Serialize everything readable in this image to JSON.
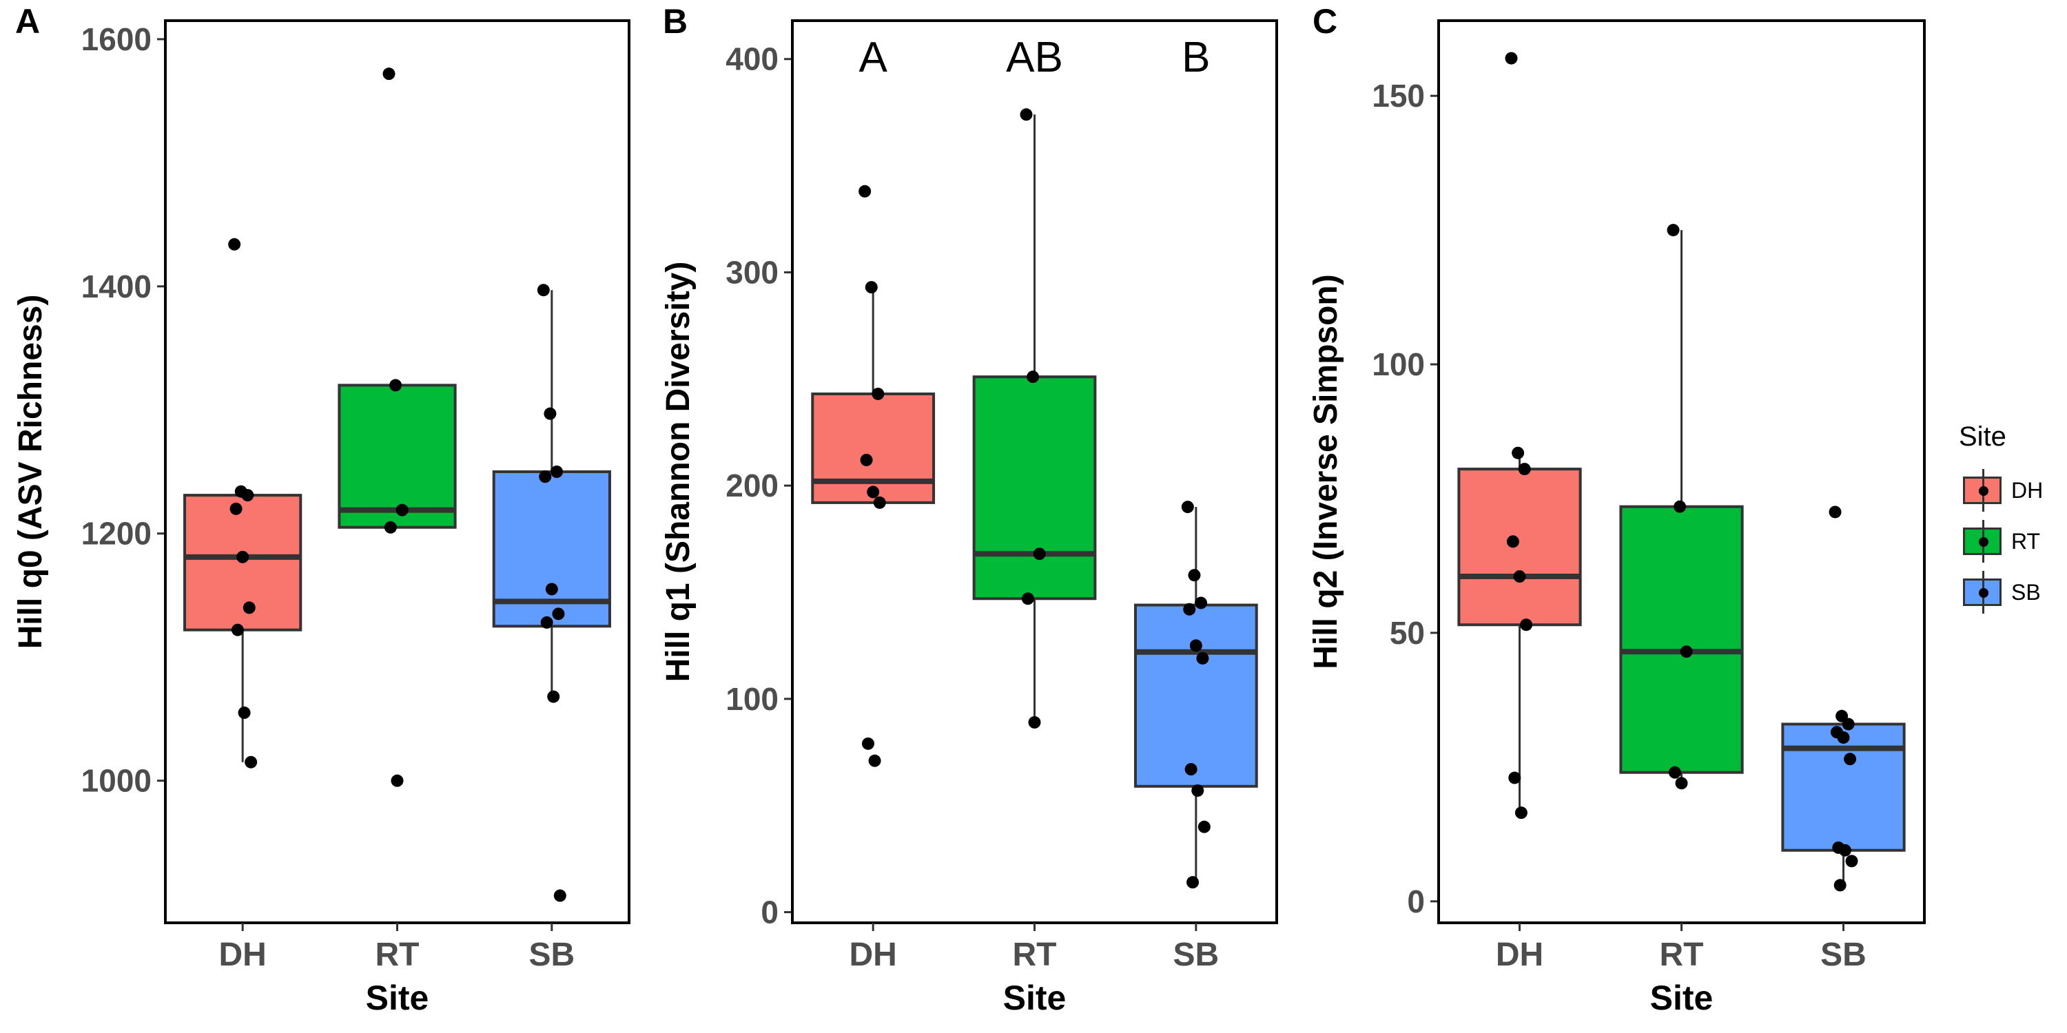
{
  "colors": {
    "DH": "#F8766D",
    "RT": "#00BA38",
    "SB": "#619CFF",
    "box_line": "#333333",
    "point": "#000000",
    "frame": "#000000",
    "tick_text": "#4D4D4D"
  },
  "legend": {
    "title": "Site",
    "placement": "right",
    "items": [
      {
        "label": "DH",
        "color": "#F8766D"
      },
      {
        "label": "RT",
        "color": "#00BA38"
      },
      {
        "label": "SB",
        "color": "#619CFF"
      }
    ]
  },
  "chart_data": [
    {
      "panel": "A",
      "type": "box",
      "xlabel": "Site",
      "ylabel": "Hill q0 (ASV Richness)",
      "categories": [
        "DH",
        "RT",
        "SB"
      ],
      "ylim": [
        885,
        1615
      ],
      "yticks": [
        1000,
        1200,
        1400,
        1600
      ],
      "group_letters": [],
      "boxes": [
        {
          "category": "DH",
          "q1": 1122,
          "median": 1181,
          "q3": 1231,
          "whisker_low": 1015,
          "whisker_high": 1234,
          "points": [
            1434,
            1234,
            1231,
            1220,
            1181,
            1140,
            1122,
            1055,
            1015
          ]
        },
        {
          "category": "RT",
          "q1": 1205,
          "median": 1219,
          "q3": 1320,
          "whisker_low": 1205,
          "whisker_high": 1320,
          "points": [
            1572,
            1320,
            1219,
            1205,
            1000
          ]
        },
        {
          "category": "SB",
          "q1": 1125,
          "median": 1145,
          "q3": 1250,
          "whisker_low": 1068,
          "whisker_high": 1397,
          "points": [
            1397,
            1297,
            1250,
            1246,
            1155,
            1135,
            1128,
            1068,
            907
          ]
        }
      ]
    },
    {
      "panel": "B",
      "type": "box",
      "xlabel": "Site",
      "ylabel": "Hill q1 (Shannon Diversity)",
      "categories": [
        "DH",
        "RT",
        "SB"
      ],
      "ylim": [
        -5,
        418
      ],
      "yticks": [
        0,
        100,
        200,
        300,
        400
      ],
      "group_letters": [
        "A",
        "AB",
        "B"
      ],
      "boxes": [
        {
          "category": "DH",
          "q1": 192,
          "median": 202,
          "q3": 243,
          "whisker_low": 192,
          "whisker_high": 293,
          "points": [
            338,
            293,
            243,
            212,
            197,
            192,
            79,
            71
          ]
        },
        {
          "category": "RT",
          "q1": 147,
          "median": 168,
          "q3": 251,
          "whisker_low": 89,
          "whisker_high": 374,
          "points": [
            374,
            251,
            168,
            147,
            89
          ]
        },
        {
          "category": "SB",
          "q1": 59,
          "median": 122,
          "q3": 144,
          "whisker_low": 14,
          "whisker_high": 190,
          "points": [
            190,
            158,
            145,
            142,
            125,
            119,
            67,
            57,
            40,
            14
          ]
        }
      ]
    },
    {
      "panel": "C",
      "type": "box",
      "xlabel": "Site",
      "ylabel": "Hill q2 (Inverse Simpson)",
      "categories": [
        "DH",
        "RT",
        "SB"
      ],
      "ylim": [
        -4,
        164
      ],
      "yticks": [
        0,
        50,
        100,
        150
      ],
      "group_letters": [],
      "boxes": [
        {
          "category": "DH",
          "q1": 51.5,
          "median": 60.5,
          "q3": 80.5,
          "whisker_low": 16.5,
          "whisker_high": 83.5,
          "points": [
            157,
            83.5,
            80.5,
            67,
            60.5,
            51.5,
            23,
            16.5
          ]
        },
        {
          "category": "RT",
          "q1": 24,
          "median": 46.5,
          "q3": 73.5,
          "whisker_low": 22,
          "whisker_high": 125,
          "points": [
            125,
            73.5,
            46.5,
            24,
            22
          ]
        },
        {
          "category": "SB",
          "q1": 9.5,
          "median": 28.5,
          "q3": 33,
          "whisker_low": 3,
          "whisker_high": 34.5,
          "points": [
            72.5,
            34.5,
            33,
            31.5,
            30.5,
            26.5,
            10,
            9.5,
            7.5,
            3
          ]
        }
      ]
    }
  ]
}
